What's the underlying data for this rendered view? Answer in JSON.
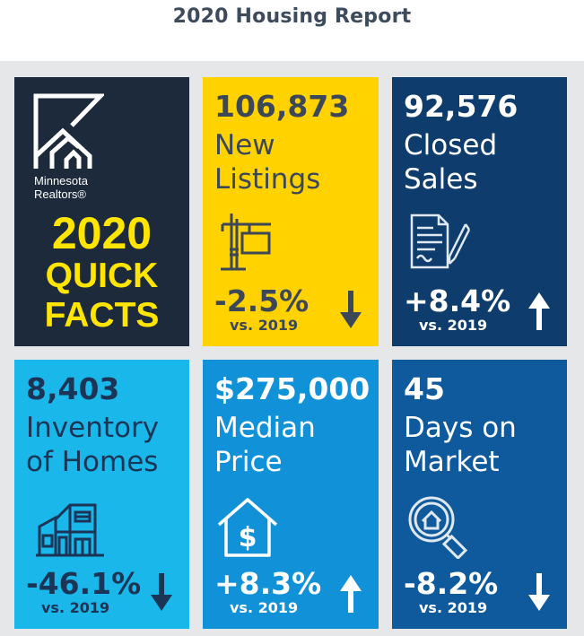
{
  "page": {
    "title": "2020 Housing Report"
  },
  "logo_tile": {
    "brand_line1": "Minnesota",
    "brand_line2": "Realtors®",
    "year": "2020",
    "quick": "QUICK",
    "facts": "FACTS"
  },
  "tiles": {
    "new_listings": {
      "value": "106,873",
      "label1": "New",
      "label2": "Listings",
      "change": "-2.5%",
      "compare": "vs. 2019",
      "direction": "down",
      "icon": "for-sale-sign-icon",
      "bg": "#ffd200"
    },
    "closed_sales": {
      "value": "92,576",
      "label1": "Closed",
      "label2": "Sales",
      "change": "+8.4%",
      "compare": "vs. 2019",
      "direction": "up",
      "icon": "contract-signing-icon",
      "bg": "#0e3d6d"
    },
    "inventory": {
      "value": "8,403",
      "label1": "Inventory",
      "label2": "of Homes",
      "change": "-46.1%",
      "compare": "vs. 2019",
      "direction": "down",
      "icon": "house-building-icon",
      "bg": "#1ab7ea"
    },
    "median_price": {
      "value": "$275,000",
      "label1": "Median",
      "label2": "Price",
      "change": "+8.3%",
      "compare": "vs. 2019",
      "direction": "up",
      "icon": "house-dollar-icon",
      "bg": "#1192d8"
    },
    "days_on_market": {
      "value": "45",
      "label1": "Days on",
      "label2": "Market",
      "change": "-8.2%",
      "compare": "vs. 2019",
      "direction": "down",
      "icon": "house-search-icon",
      "bg": "#0f5a9c"
    }
  }
}
